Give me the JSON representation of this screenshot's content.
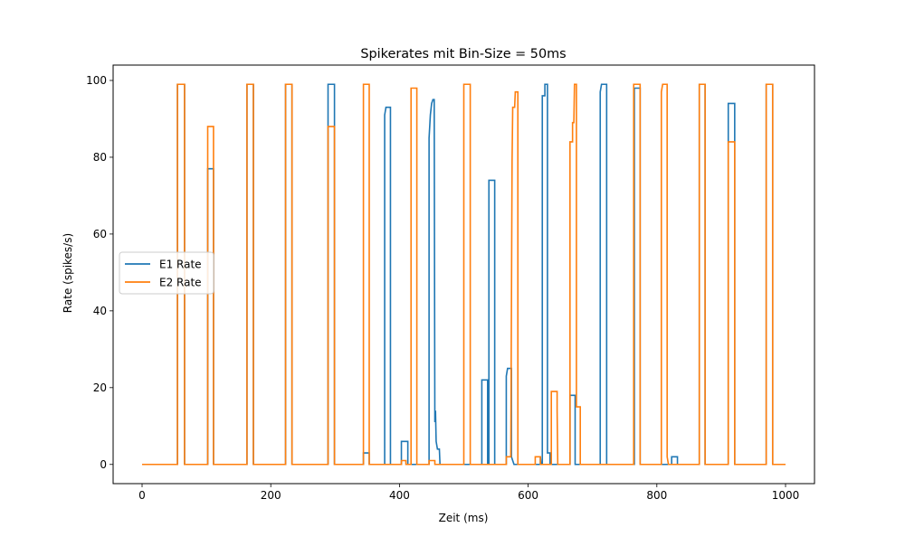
{
  "chart_data": {
    "type": "line",
    "title": "Spikerates mit Bin-Size = 50ms",
    "xlabel": "Zeit (ms)",
    "ylabel": "Rate (spikes/s)",
    "xlim": [
      -45,
      1045
    ],
    "ylim": [
      -5,
      104
    ],
    "xticks": [
      0,
      200,
      400,
      600,
      800,
      1000
    ],
    "yticks": [
      0,
      20,
      40,
      60,
      80,
      100
    ],
    "legend": "center-left",
    "grid": false,
    "series": [
      {
        "name": "E1 Rate",
        "color": "#1f77b4",
        "points": [
          [
            0,
            0
          ],
          [
            55,
            0
          ],
          [
            55,
            99
          ],
          [
            66,
            99
          ],
          [
            66,
            0
          ],
          [
            102,
            0
          ],
          [
            102,
            77
          ],
          [
            111,
            77
          ],
          [
            111,
            0
          ],
          [
            163,
            0
          ],
          [
            163,
            99
          ],
          [
            173,
            99
          ],
          [
            173,
            0
          ],
          [
            223,
            0
          ],
          [
            223,
            99
          ],
          [
            233,
            99
          ],
          [
            233,
            0
          ],
          [
            289,
            0
          ],
          [
            289,
            99
          ],
          [
            299,
            99
          ],
          [
            299,
            0
          ],
          [
            344,
            0
          ],
          [
            344,
            3
          ],
          [
            353,
            3
          ],
          [
            353,
            0
          ],
          [
            377,
            0
          ],
          [
            377,
            91
          ],
          [
            379,
            93
          ],
          [
            386,
            93
          ],
          [
            386,
            0
          ],
          [
            403,
            0
          ],
          [
            403,
            6
          ],
          [
            413,
            6
          ],
          [
            413,
            0
          ],
          [
            446,
            0
          ],
          [
            446,
            85
          ],
          [
            448,
            91
          ],
          [
            450,
            94
          ],
          [
            452,
            95
          ],
          [
            454,
            95
          ],
          [
            455,
            11
          ],
          [
            456,
            14
          ],
          [
            457,
            6
          ],
          [
            459,
            4
          ],
          [
            462,
            4
          ],
          [
            463,
            0
          ],
          [
            500,
            0
          ],
          [
            528,
            0
          ],
          [
            528,
            22
          ],
          [
            537,
            22
          ],
          [
            537,
            0
          ],
          [
            539,
            0
          ],
          [
            539,
            74
          ],
          [
            548,
            74
          ],
          [
            548,
            0
          ],
          [
            566,
            0
          ],
          [
            566,
            23
          ],
          [
            568,
            25
          ],
          [
            574,
            25
          ],
          [
            574,
            2
          ],
          [
            578,
            0
          ],
          [
            619,
            0
          ],
          [
            619,
            2
          ],
          [
            620,
            0
          ],
          [
            622,
            0
          ],
          [
            622,
            96
          ],
          [
            626,
            96
          ],
          [
            626,
            99
          ],
          [
            630,
            99
          ],
          [
            630,
            3
          ],
          [
            634,
            3
          ],
          [
            634,
            0
          ],
          [
            665,
            0
          ],
          [
            665,
            18
          ],
          [
            673,
            18
          ],
          [
            673,
            0
          ],
          [
            712,
            0
          ],
          [
            712,
            97
          ],
          [
            714,
            99
          ],
          [
            722,
            99
          ],
          [
            722,
            0
          ],
          [
            765,
            0
          ],
          [
            765,
            98
          ],
          [
            774,
            98
          ],
          [
            774,
            0
          ],
          [
            808,
            0
          ],
          [
            808,
            0
          ],
          [
            815,
            0
          ],
          [
            823,
            0
          ],
          [
            823,
            2
          ],
          [
            832,
            2
          ],
          [
            832,
            0
          ],
          [
            866,
            0
          ],
          [
            866,
            99
          ],
          [
            875,
            99
          ],
          [
            875,
            0
          ],
          [
            911,
            0
          ],
          [
            911,
            94
          ],
          [
            921,
            94
          ],
          [
            921,
            0
          ],
          [
            970,
            0
          ],
          [
            970,
            99
          ],
          [
            980,
            99
          ],
          [
            980,
            0
          ],
          [
            1000,
            0
          ]
        ]
      },
      {
        "name": "E2 Rate",
        "color": "#ff7f0e",
        "points": [
          [
            0,
            0
          ],
          [
            55,
            0
          ],
          [
            55,
            99
          ],
          [
            66,
            99
          ],
          [
            66,
            0
          ],
          [
            102,
            0
          ],
          [
            102,
            88
          ],
          [
            111,
            88
          ],
          [
            111,
            0
          ],
          [
            163,
            0
          ],
          [
            163,
            99
          ],
          [
            173,
            99
          ],
          [
            173,
            0
          ],
          [
            223,
            0
          ],
          [
            223,
            99
          ],
          [
            233,
            99
          ],
          [
            233,
            0
          ],
          [
            289,
            0
          ],
          [
            289,
            88
          ],
          [
            299,
            88
          ],
          [
            299,
            0
          ],
          [
            344,
            0
          ],
          [
            344,
            99
          ],
          [
            353,
            99
          ],
          [
            353,
            0
          ],
          [
            403,
            0
          ],
          [
            403,
            1
          ],
          [
            410,
            1
          ],
          [
            410,
            0
          ],
          [
            418,
            0
          ],
          [
            418,
            98
          ],
          [
            427,
            98
          ],
          [
            427,
            0
          ],
          [
            446,
            0
          ],
          [
            446,
            1
          ],
          [
            455,
            1
          ],
          [
            455,
            0
          ],
          [
            500,
            0
          ],
          [
            500,
            99
          ],
          [
            510,
            99
          ],
          [
            510,
            0
          ],
          [
            566,
            0
          ],
          [
            566,
            2
          ],
          [
            573,
            2
          ],
          [
            575,
            79
          ],
          [
            576,
            93
          ],
          [
            579,
            93
          ],
          [
            580,
            97
          ],
          [
            584,
            97
          ],
          [
            584,
            0
          ],
          [
            611,
            0
          ],
          [
            611,
            2
          ],
          [
            619,
            2
          ],
          [
            619,
            0
          ],
          [
            636,
            0
          ],
          [
            636,
            19
          ],
          [
            645,
            19
          ],
          [
            645,
            14
          ],
          [
            646,
            0
          ],
          [
            665,
            0
          ],
          [
            665,
            84
          ],
          [
            669,
            84
          ],
          [
            669,
            89
          ],
          [
            671,
            89
          ],
          [
            672,
            99
          ],
          [
            675,
            99
          ],
          [
            675,
            15
          ],
          [
            681,
            15
          ],
          [
            681,
            0
          ],
          [
            764,
            0
          ],
          [
            764,
            99
          ],
          [
            774,
            99
          ],
          [
            774,
            0
          ],
          [
            807,
            0
          ],
          [
            807,
            97
          ],
          [
            809,
            99
          ],
          [
            816,
            99
          ],
          [
            816,
            2
          ],
          [
            818,
            0
          ],
          [
            866,
            0
          ],
          [
            866,
            99
          ],
          [
            875,
            99
          ],
          [
            875,
            0
          ],
          [
            911,
            0
          ],
          [
            911,
            84
          ],
          [
            921,
            84
          ],
          [
            921,
            0
          ],
          [
            970,
            0
          ],
          [
            970,
            99
          ],
          [
            980,
            99
          ],
          [
            980,
            0
          ],
          [
            1000,
            0
          ]
        ]
      }
    ]
  }
}
